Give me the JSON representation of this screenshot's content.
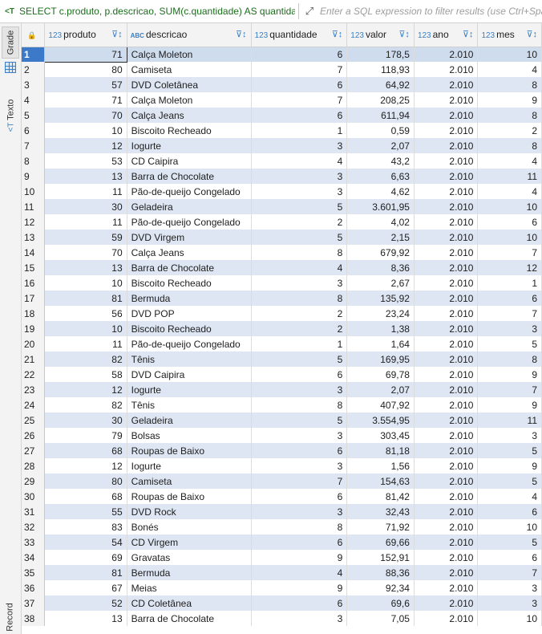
{
  "query": {
    "sql": "SELECT c.produto, p.descricao, SUM(c.quantidade) AS quantidade",
    "filter_placeholder": "Enter a SQL expression to filter results (use Ctrl+Space)"
  },
  "sidebar": {
    "grade_label": "Grade",
    "texto_label": "Texto",
    "record_label": "Record"
  },
  "columns": [
    {
      "type": "123",
      "name": "produto"
    },
    {
      "type": "ABC",
      "name": "descricao"
    },
    {
      "type": "123",
      "name": "quantidade"
    },
    {
      "type": "123",
      "name": "valor"
    },
    {
      "type": "123",
      "name": "ano"
    },
    {
      "type": "123",
      "name": "mes"
    }
  ],
  "rows": [
    [
      "1",
      "71",
      "Calça Moleton",
      "6",
      "178,5",
      "2.010",
      "10"
    ],
    [
      "2",
      "80",
      "Camiseta",
      "7",
      "118,93",
      "2.010",
      "4"
    ],
    [
      "3",
      "57",
      "DVD Coletânea",
      "6",
      "64,92",
      "2.010",
      "8"
    ],
    [
      "4",
      "71",
      "Calça Moleton",
      "7",
      "208,25",
      "2.010",
      "9"
    ],
    [
      "5",
      "70",
      "Calça Jeans",
      "6",
      "611,94",
      "2.010",
      "8"
    ],
    [
      "6",
      "10",
      "Biscoito Recheado",
      "1",
      "0,59",
      "2.010",
      "2"
    ],
    [
      "7",
      "12",
      "Iogurte",
      "3",
      "2,07",
      "2.010",
      "8"
    ],
    [
      "8",
      "53",
      "CD Caipira",
      "4",
      "43,2",
      "2.010",
      "4"
    ],
    [
      "9",
      "13",
      "Barra de Chocolate",
      "3",
      "6,63",
      "2.010",
      "11"
    ],
    [
      "10",
      "11",
      "Pão-de-queijo Congelado",
      "3",
      "4,62",
      "2.010",
      "4"
    ],
    [
      "11",
      "30",
      "Geladeira",
      "5",
      "3.601,95",
      "2.010",
      "10"
    ],
    [
      "12",
      "11",
      "Pão-de-queijo Congelado",
      "2",
      "4,02",
      "2.010",
      "6"
    ],
    [
      "13",
      "59",
      "DVD Virgem",
      "5",
      "2,15",
      "2.010",
      "10"
    ],
    [
      "14",
      "70",
      "Calça Jeans",
      "8",
      "679,92",
      "2.010",
      "7"
    ],
    [
      "15",
      "13",
      "Barra de Chocolate",
      "4",
      "8,36",
      "2.010",
      "12"
    ],
    [
      "16",
      "10",
      "Biscoito Recheado",
      "3",
      "2,67",
      "2.010",
      "1"
    ],
    [
      "17",
      "81",
      "Bermuda",
      "8",
      "135,92",
      "2.010",
      "6"
    ],
    [
      "18",
      "56",
      "DVD POP",
      "2",
      "23,24",
      "2.010",
      "7"
    ],
    [
      "19",
      "10",
      "Biscoito Recheado",
      "2",
      "1,38",
      "2.010",
      "3"
    ],
    [
      "20",
      "11",
      "Pão-de-queijo Congelado",
      "1",
      "1,64",
      "2.010",
      "5"
    ],
    [
      "21",
      "82",
      "Tênis",
      "5",
      "169,95",
      "2.010",
      "8"
    ],
    [
      "22",
      "58",
      "DVD Caipira",
      "6",
      "69,78",
      "2.010",
      "9"
    ],
    [
      "23",
      "12",
      "Iogurte",
      "3",
      "2,07",
      "2.010",
      "7"
    ],
    [
      "24",
      "82",
      "Tênis",
      "8",
      "407,92",
      "2.010",
      "9"
    ],
    [
      "25",
      "30",
      "Geladeira",
      "5",
      "3.554,95",
      "2.010",
      "11"
    ],
    [
      "26",
      "79",
      "Bolsas",
      "3",
      "303,45",
      "2.010",
      "3"
    ],
    [
      "27",
      "68",
      "Roupas de Baixo",
      "6",
      "81,18",
      "2.010",
      "5"
    ],
    [
      "28",
      "12",
      "Iogurte",
      "3",
      "1,56",
      "2.010",
      "9"
    ],
    [
      "29",
      "80",
      "Camiseta",
      "7",
      "154,63",
      "2.010",
      "5"
    ],
    [
      "30",
      "68",
      "Roupas de Baixo",
      "6",
      "81,42",
      "2.010",
      "4"
    ],
    [
      "31",
      "55",
      "DVD Rock",
      "3",
      "32,43",
      "2.010",
      "6"
    ],
    [
      "32",
      "83",
      "Bonés",
      "8",
      "71,92",
      "2.010",
      "10"
    ],
    [
      "33",
      "54",
      "CD Virgem",
      "6",
      "69,66",
      "2.010",
      "5"
    ],
    [
      "34",
      "69",
      "Gravatas",
      "9",
      "152,91",
      "2.010",
      "6"
    ],
    [
      "35",
      "81",
      "Bermuda",
      "4",
      "88,36",
      "2.010",
      "7"
    ],
    [
      "36",
      "67",
      "Meias",
      "9",
      "92,34",
      "2.010",
      "3"
    ],
    [
      "37",
      "52",
      "CD Coletânea",
      "6",
      "69,6",
      "2.010",
      "3"
    ],
    [
      "38",
      "13",
      "Barra de Chocolate",
      "3",
      "7,05",
      "2.010",
      "10"
    ]
  ]
}
